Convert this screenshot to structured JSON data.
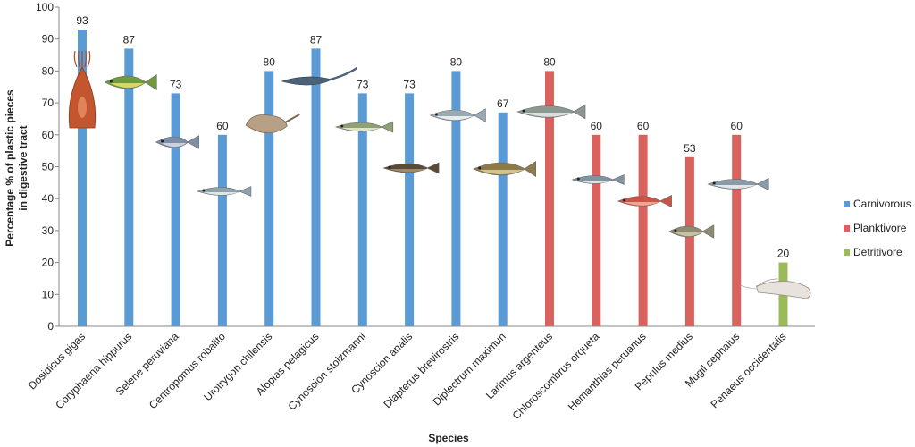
{
  "chart_data": {
    "type": "bar",
    "categories": [
      "Dosidicus gigas",
      "Coryphaena hippurus",
      "Selene peruviana",
      "Centropomus robalito",
      "Urotrygon chilensis",
      "Alopias pelagicus",
      "Cynoscion stolzmanni",
      "Cynoscion analis",
      "Diapterus brevirostris",
      "Diplectrum maximun",
      "Larimus argenteus",
      "Chloroscombrus orqueta",
      "Hemanthias peruanus",
      "Peprilus medius",
      "Mugil cephalus",
      "Penaeus occidentalis"
    ],
    "values": [
      93,
      87,
      73,
      60,
      80,
      87,
      73,
      73,
      80,
      67,
      80,
      60,
      60,
      53,
      60,
      20
    ],
    "groups": [
      "Carnivorous",
      "Carnivorous",
      "Carnivorous",
      "Carnivorous",
      "Carnivorous",
      "Carnivorous",
      "Carnivorous",
      "Carnivorous",
      "Carnivorous",
      "Carnivorous",
      "Planktivore",
      "Planktivore",
      "Planktivore",
      "Planktivore",
      "Planktivore",
      "Detritivore"
    ],
    "legend": [
      {
        "name": "Carnivorous",
        "color": "#5b9bd5"
      },
      {
        "name": "Planktivore",
        "color": "#d9625e"
      },
      {
        "name": "Detritivore",
        "color": "#9bbb59"
      }
    ],
    "legend_position": "right",
    "xlabel": "Species",
    "ylabel_line1": "Percentage % of plastic pieces",
    "ylabel_line2": "in digestive tract",
    "ylim": [
      0,
      100
    ],
    "yticks": [
      0,
      10,
      20,
      30,
      40,
      50,
      60,
      70,
      80,
      90,
      100
    ],
    "grid": false,
    "data_labels": true
  }
}
